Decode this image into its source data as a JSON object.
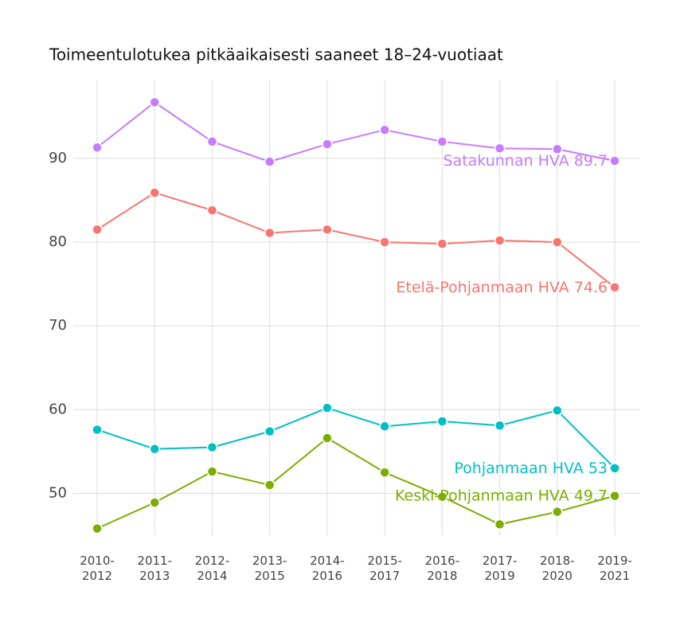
{
  "chart_data": {
    "type": "line",
    "title": "Toimeentulotukea pitkäaikaisesti saaneet 18–24-vuotiaat",
    "categories": [
      "2010-2012",
      "2011-2013",
      "2012-2014",
      "2013-2015",
      "2014-2016",
      "2015-2017",
      "2016-2018",
      "2017-2019",
      "2018-2020",
      "2019-2021"
    ],
    "series": [
      {
        "name": "Satakunnan HVA",
        "color": "#c77cff",
        "values": [
          91.3,
          96.7,
          92.0,
          89.6,
          91.7,
          93.4,
          92.0,
          91.2,
          91.1,
          89.7
        ]
      },
      {
        "name": "Etelä-Pohjanmaan HVA",
        "color": "#f8766d",
        "values": [
          81.5,
          85.9,
          83.8,
          81.1,
          81.5,
          80.0,
          79.8,
          80.2,
          80.0,
          74.6
        ]
      },
      {
        "name": "Pohjanmaan HVA",
        "color": "#00bfc4",
        "values": [
          57.6,
          55.3,
          55.5,
          57.4,
          60.2,
          58.0,
          58.6,
          58.1,
          59.9,
          53
        ]
      },
      {
        "name": "Keski-Pohjanmaan HVA",
        "color": "#7cae00",
        "values": [
          45.8,
          48.9,
          52.6,
          51.0,
          56.6,
          52.5,
          49.6,
          46.3,
          47.8,
          49.7
        ]
      }
    ],
    "ylim": [
      45,
      99.4
    ],
    "yticks": [
      50,
      60,
      70,
      80,
      90
    ],
    "grid": true
  }
}
